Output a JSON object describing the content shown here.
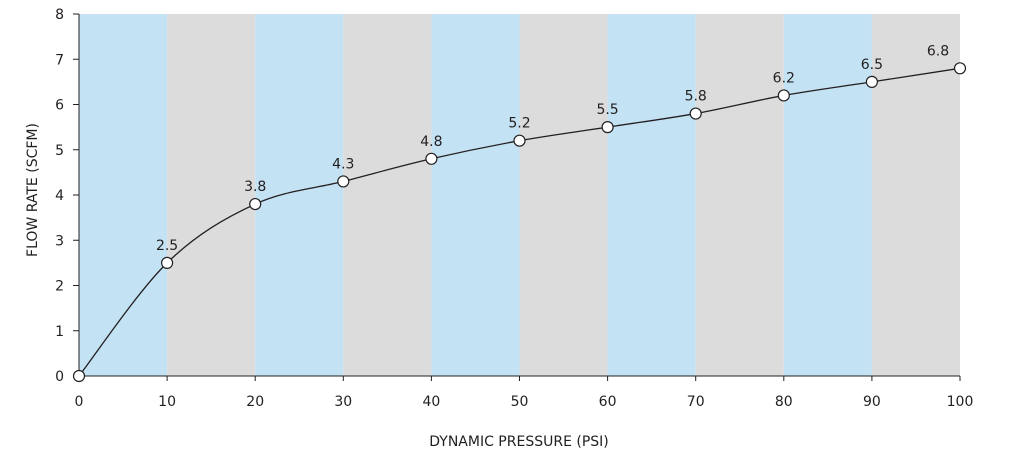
{
  "chart_data": {
    "type": "line",
    "xlabel": "DYNAMIC PRESSURE (PSI)",
    "ylabel": "FLOW RATE (SCFM)",
    "xlim": [
      0,
      100
    ],
    "ylim": [
      0,
      8
    ],
    "x_ticks": [
      0,
      10,
      20,
      30,
      40,
      50,
      60,
      70,
      80,
      90,
      100
    ],
    "y_ticks": [
      0,
      1,
      2,
      3,
      4,
      5,
      6,
      7,
      8
    ],
    "grid": false,
    "background_bands": [
      "blue",
      "gray",
      "blue",
      "gray",
      "blue",
      "gray",
      "blue",
      "gray",
      "blue",
      "gray"
    ],
    "x": [
      0,
      10,
      20,
      30,
      40,
      50,
      60,
      70,
      80,
      90,
      100
    ],
    "y": [
      0,
      2.5,
      3.8,
      4.3,
      4.8,
      5.2,
      5.5,
      5.8,
      6.2,
      6.5,
      6.8
    ],
    "data_labels": [
      "",
      "2.5",
      "3.8",
      "4.3",
      "4.8",
      "5.2",
      "5.5",
      "5.8",
      "6.2",
      "6.5",
      "6.8"
    ],
    "colors": {
      "band_blue": "#c3e2f4",
      "band_gray": "#dcdcdd",
      "line": "#231f20",
      "marker_fill": "#ffffff",
      "text": "#231f20"
    }
  }
}
